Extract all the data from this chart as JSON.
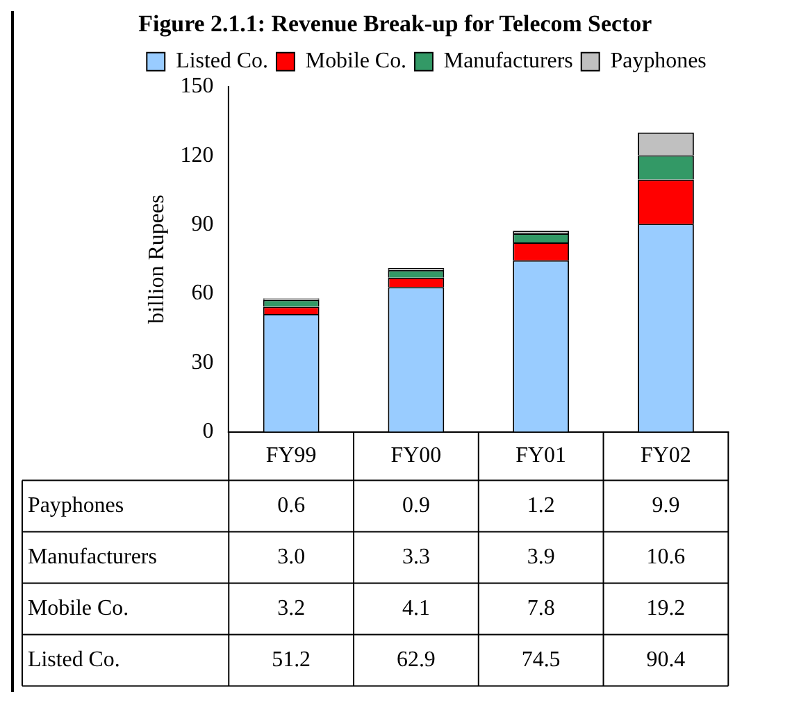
{
  "chart_data": {
    "type": "bar",
    "title": "Figure 2.1.1: Revenue Break-up for Telecom Sector",
    "ylabel": "billion Rupees",
    "categories": [
      "FY99",
      "FY00",
      "FY01",
      "FY02"
    ],
    "stacked": true,
    "legend": "top left",
    "grid": false,
    "ylim": [
      0,
      150
    ],
    "yticks": [
      0,
      30,
      60,
      90,
      120,
      150
    ],
    "series": [
      {
        "name": "Listed Co.",
        "color": "#99ccff",
        "values": [
          51.2,
          62.9,
          74.5,
          90.4
        ],
        "value_labels": [
          "51.2",
          "62.9",
          "74.5",
          "90.4"
        ]
      },
      {
        "name": "Mobile Co.",
        "color": "#ff0000",
        "values": [
          3.2,
          4.1,
          7.8,
          19.2
        ],
        "value_labels": [
          "3.2",
          "4.1",
          "7.8",
          "19.2"
        ]
      },
      {
        "name": "Manufacturers",
        "color": "#339966",
        "values": [
          3.0,
          3.3,
          3.9,
          10.6
        ],
        "value_labels": [
          "3.0",
          "3.3",
          "3.9",
          "10.6"
        ]
      },
      {
        "name": "Payphones",
        "color": "#c0c0c0",
        "values": [
          0.6,
          0.9,
          1.2,
          9.9
        ],
        "value_labels": [
          "0.6",
          "0.9",
          "1.2",
          "9.9"
        ]
      }
    ]
  }
}
